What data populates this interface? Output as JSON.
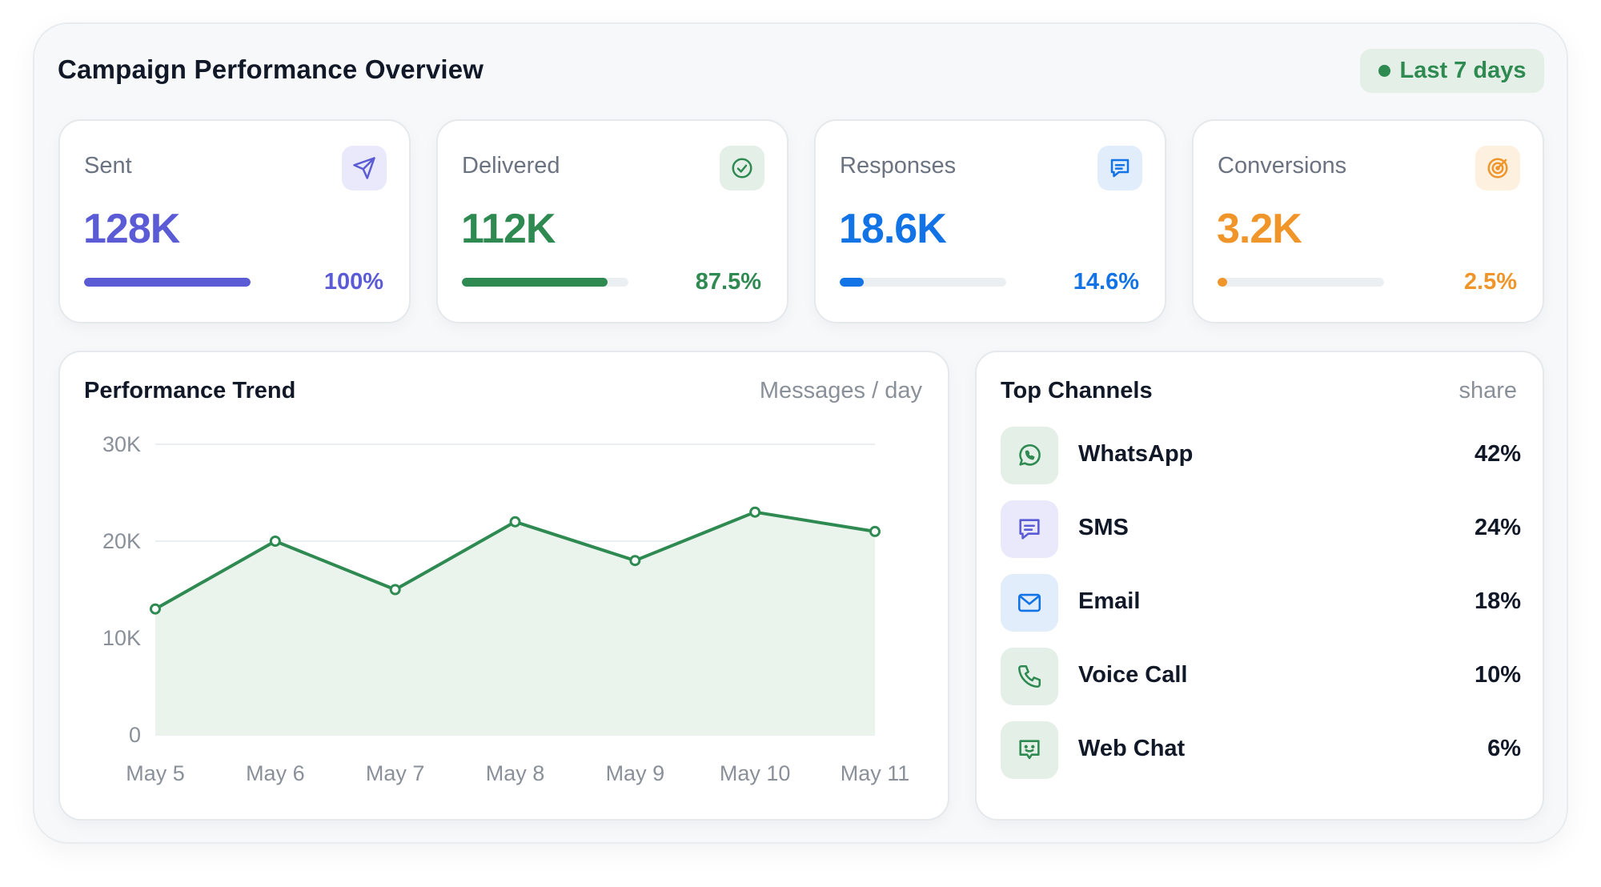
{
  "header": {
    "title": "Campaign Performance Overview",
    "range_label": "Last 7 days",
    "range_color": "#2f8a52"
  },
  "kpis": [
    {
      "label": "Sent",
      "value": "128K",
      "percent_label": "100%",
      "progress": 1.0,
      "color": "#5b5bd6",
      "icon": "send-icon"
    },
    {
      "label": "Delivered",
      "value": "112K",
      "percent_label": "87.5%",
      "progress": 0.875,
      "color": "#2f8a52",
      "icon": "check-circle-icon"
    },
    {
      "label": "Responses",
      "value": "18.6K",
      "percent_label": "14.6%",
      "progress": 0.146,
      "color": "#1273e6",
      "icon": "message-icon"
    },
    {
      "label": "Conversions",
      "value": "3.2K",
      "percent_label": "2.5%",
      "progress": 0.025,
      "color": "#f0952a",
      "icon": "target-icon"
    }
  ],
  "trend": {
    "title": "Performance Trend",
    "unit_label": "Messages / day"
  },
  "chart_data": {
    "type": "area",
    "categories": [
      "May 5",
      "May 6",
      "May 7",
      "May 8",
      "May 9",
      "May 10",
      "May 11"
    ],
    "values": [
      13000,
      20000,
      15000,
      22000,
      18000,
      23000,
      21000
    ],
    "yticks": [
      "0",
      "10K",
      "20K",
      "30K"
    ],
    "ylim": [
      0,
      30000
    ],
    "grid": true,
    "line_color": "#2f8a52",
    "fill_color": "#eaf4ed"
  },
  "channels": {
    "title": "Top Channels",
    "sub_label": "share",
    "items": [
      {
        "name": "WhatsApp",
        "share": "42%",
        "icon": "whatsapp-icon",
        "color": "#2f8a52"
      },
      {
        "name": "SMS",
        "share": "24%",
        "icon": "sms-icon",
        "color": "#5b5bd6"
      },
      {
        "name": "Email",
        "share": "18%",
        "icon": "email-icon",
        "color": "#1273e6"
      },
      {
        "name": "Voice Call",
        "share": "10%",
        "icon": "phone-icon",
        "color": "#2f8a52"
      },
      {
        "name": "Web Chat",
        "share": "6%",
        "icon": "web-chat-icon",
        "color": "#2f8a52"
      }
    ]
  }
}
